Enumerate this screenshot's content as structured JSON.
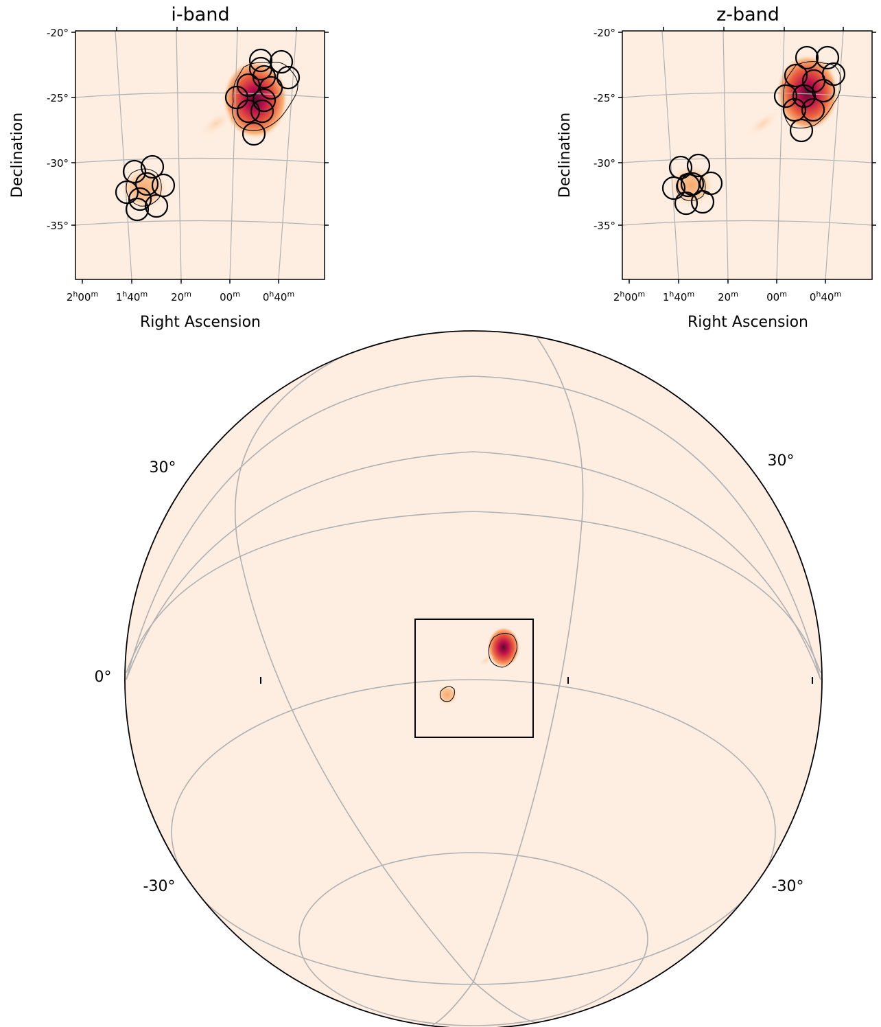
{
  "chart_data": [
    {
      "type": "heatmap",
      "title": "i-band",
      "xlabel": "Right Ascension",
      "ylabel": "Declination",
      "x_tick_labels": [
        {
          "h": "2",
          "hu": "h",
          "m": "00",
          "mu": "m"
        },
        {
          "h": "1",
          "hu": "h",
          "m": "40",
          "mu": "m"
        },
        {
          "h": "",
          "hu": "",
          "m": "20",
          "mu": "m"
        },
        {
          "h": "",
          "hu": "",
          "m": "00",
          "mu": "m"
        },
        {
          "h": "0",
          "hu": "h",
          "m": "40",
          "mu": "m"
        }
      ],
      "y_tick_labels": [
        "-20°",
        "-25°",
        "-30°",
        "-35°"
      ],
      "grid": true,
      "colormap": [
        "#fdeee0",
        "#f9b27a",
        "#e85c3c",
        "#c0124c",
        "#5a0a2e"
      ],
      "contour_color": "#000000",
      "circle_color": "#000000",
      "field_count": 20
    },
    {
      "type": "heatmap",
      "title": "z-band",
      "xlabel": "Right Ascension",
      "ylabel": "Declination",
      "x_tick_labels": [
        {
          "h": "2",
          "hu": "h",
          "m": "00",
          "mu": "m"
        },
        {
          "h": "1",
          "hu": "h",
          "m": "40",
          "mu": "m"
        },
        {
          "h": "",
          "hu": "",
          "m": "20",
          "mu": "m"
        },
        {
          "h": "",
          "hu": "",
          "m": "00",
          "mu": "m"
        },
        {
          "h": "0",
          "hu": "h",
          "m": "40",
          "mu": "m"
        }
      ],
      "y_tick_labels": [
        "-20°",
        "-25°",
        "-30°",
        "-35°"
      ],
      "grid": true,
      "colormap": [
        "#fdeee0",
        "#f9b27a",
        "#e85c3c",
        "#c0124c",
        "#5a0a2e"
      ],
      "contour_color": "#000000",
      "circle_color": "#000000",
      "field_count": 19
    },
    {
      "type": "heatmap",
      "projection": "globe",
      "grid": true,
      "latitude_labels": [
        "30°",
        "30°",
        "0°",
        "-30°",
        "-30°"
      ],
      "colormap": [
        "#fdeee0",
        "#f9b27a",
        "#e85c3c",
        "#c0124c",
        "#5a0a2e"
      ],
      "background_color": "#feeee1",
      "grid_color": "#b0b0b0",
      "inset_box": true
    }
  ]
}
